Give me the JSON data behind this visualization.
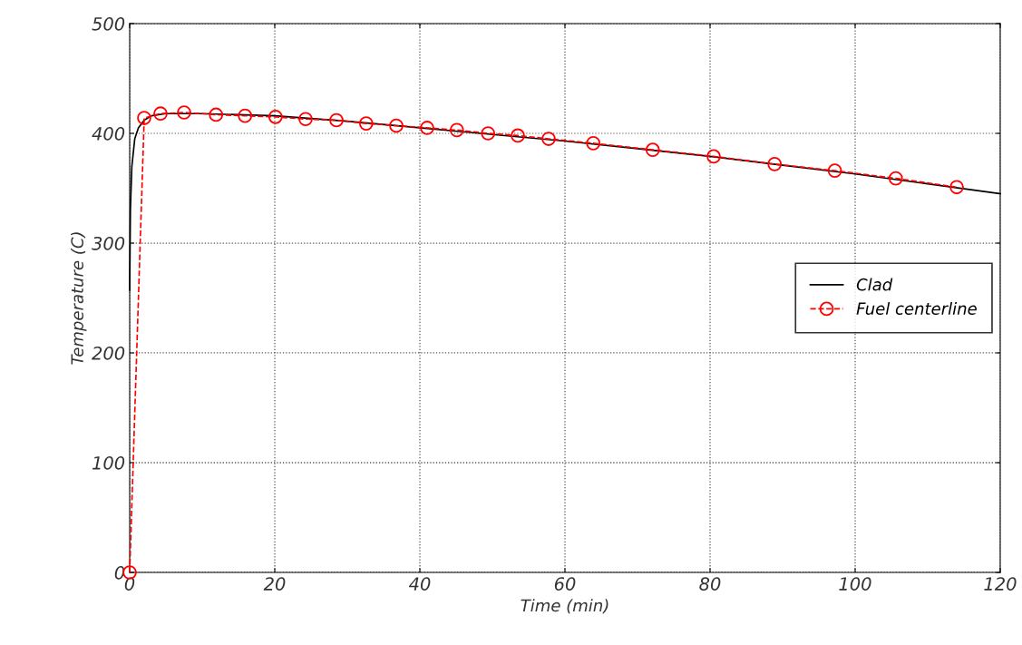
{
  "chart_data": {
    "type": "line",
    "xlabel": "Time (min)",
    "ylabel": "Temperature (C)",
    "xlim": [
      0,
      120
    ],
    "ylim": [
      0,
      500
    ],
    "xticks": [
      0,
      20,
      40,
      60,
      80,
      100,
      120
    ],
    "yticks": [
      0,
      100,
      200,
      300,
      400,
      500
    ],
    "grid": true,
    "legend": "right",
    "series": [
      {
        "name": "Clad",
        "color": "#000000",
        "line_style": "solid",
        "marker": "none",
        "x": [
          0,
          0.1,
          0.3,
          0.7,
          1.2,
          2,
          3,
          5,
          10,
          20,
          30,
          40,
          50,
          60,
          70,
          80,
          90,
          100,
          110,
          120
        ],
        "values": [
          257,
          330,
          370,
          395,
          405,
          412,
          416,
          418,
          418,
          416,
          411,
          405,
          399,
          393,
          386,
          379,
          371,
          363,
          354,
          345
        ]
      },
      {
        "name": "Fuel centerline",
        "color": "#ff0000",
        "line_style": "dashed",
        "marker": "circle",
        "x": [
          0,
          2,
          4.25,
          7.5,
          11.9,
          15.9,
          20.1,
          24.25,
          28.5,
          32.6,
          36.75,
          41,
          45.1,
          49.4,
          53.5,
          57.75,
          63.9,
          72.1,
          80.5,
          88.9,
          97.2,
          105.6,
          114
        ],
        "values": [
          0,
          414,
          418,
          419,
          417,
          416,
          415,
          413,
          412,
          409,
          407,
          405,
          403,
          400,
          398,
          395,
          391,
          385,
          379,
          372,
          366,
          359,
          351
        ]
      }
    ]
  }
}
